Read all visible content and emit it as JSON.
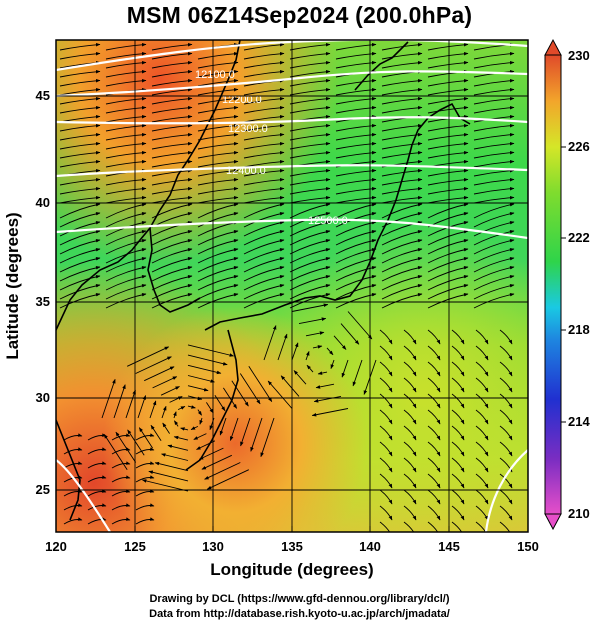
{
  "title": "MSM 06Z14Sep2024 (200.0hPa)",
  "x_axis": {
    "label": "Longitude (degrees)",
    "range": [
      120,
      150
    ],
    "ticks": [
      "120",
      "125",
      "130",
      "135",
      "140",
      "145",
      "150"
    ]
  },
  "y_axis": {
    "label": "Latitude  (degrees)",
    "range": [
      22.4,
      47.6
    ],
    "ticks": [
      "25",
      "30",
      "35",
      "40",
      "45"
    ]
  },
  "colorbar": {
    "range": [
      210,
      230
    ],
    "ticks": [
      "210",
      "214",
      "218",
      "222",
      "226",
      "230"
    ]
  },
  "contour_labels": [
    "12100.0",
    "12200.0",
    "12300.0",
    "12400.0",
    "12500.0"
  ],
  "credits": {
    "line1": "Drawing by DCL (https://www.gfd-dennou.org/library/dcl/)",
    "line2": "Data from http://database.rish.kyoto-u.ac.jp/arch/jmadata/"
  },
  "colors": {
    "cold_magenta": "#e64fc9",
    "blue": "#2030d0",
    "cyan": "#1ac9e3",
    "green": "#2fd44a",
    "yellow": "#c9e82a",
    "orange": "#f29a2a",
    "red": "#e04a2a",
    "contour": "#ffffff"
  }
}
